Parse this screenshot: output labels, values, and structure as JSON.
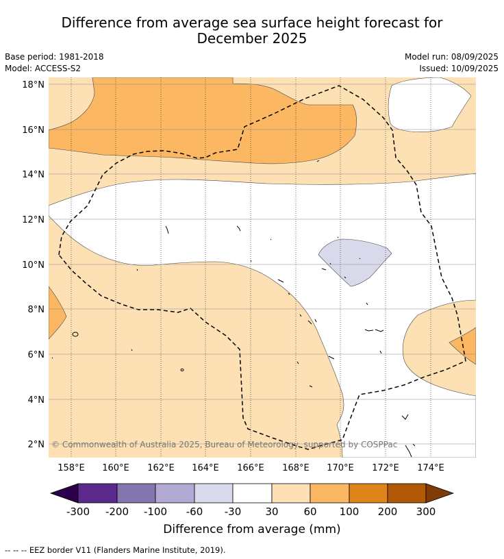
{
  "title": {
    "line1": "Difference from average sea surface height forecast for",
    "line2": "December 2025"
  },
  "meta": {
    "base_period": "Base period: 1981-2018",
    "model": "Model: ACCESS-S2",
    "model_run": "Model run: 08/09/2025",
    "issued": "Issued: 10/09/2025"
  },
  "map": {
    "lon_ticks": [
      "158°E",
      "160°E",
      "162°E",
      "164°E",
      "166°E",
      "168°E",
      "170°E",
      "172°E",
      "174°E"
    ],
    "lat_ticks": [
      "18°N",
      "16°N",
      "14°N",
      "12°N",
      "10°N",
      "8°N",
      "6°N",
      "4°N",
      "2°N"
    ],
    "copyright": "© Commonwealth of Australia 2025, Bureau of Meteorology, supported by COSPPac"
  },
  "colorbar": {
    "ticks": [
      "-300",
      "-200",
      "-100",
      "-60",
      "-30",
      "30",
      "60",
      "100",
      "200",
      "300"
    ],
    "colors": [
      "#5b2a8c",
      "#8474b0",
      "#b1a9d3",
      "#d9d9ec",
      "#ffffff",
      "#fde0b4",
      "#fbb761",
      "#e08319",
      "#b35807"
    ],
    "under_color": "#2d004b",
    "over_color": "#7f3b08",
    "label": "Difference from average (mm)"
  },
  "footer": {
    "legend": "-- -- -- EEZ border V11 (Flanders Marine Institute, 2019)."
  }
}
